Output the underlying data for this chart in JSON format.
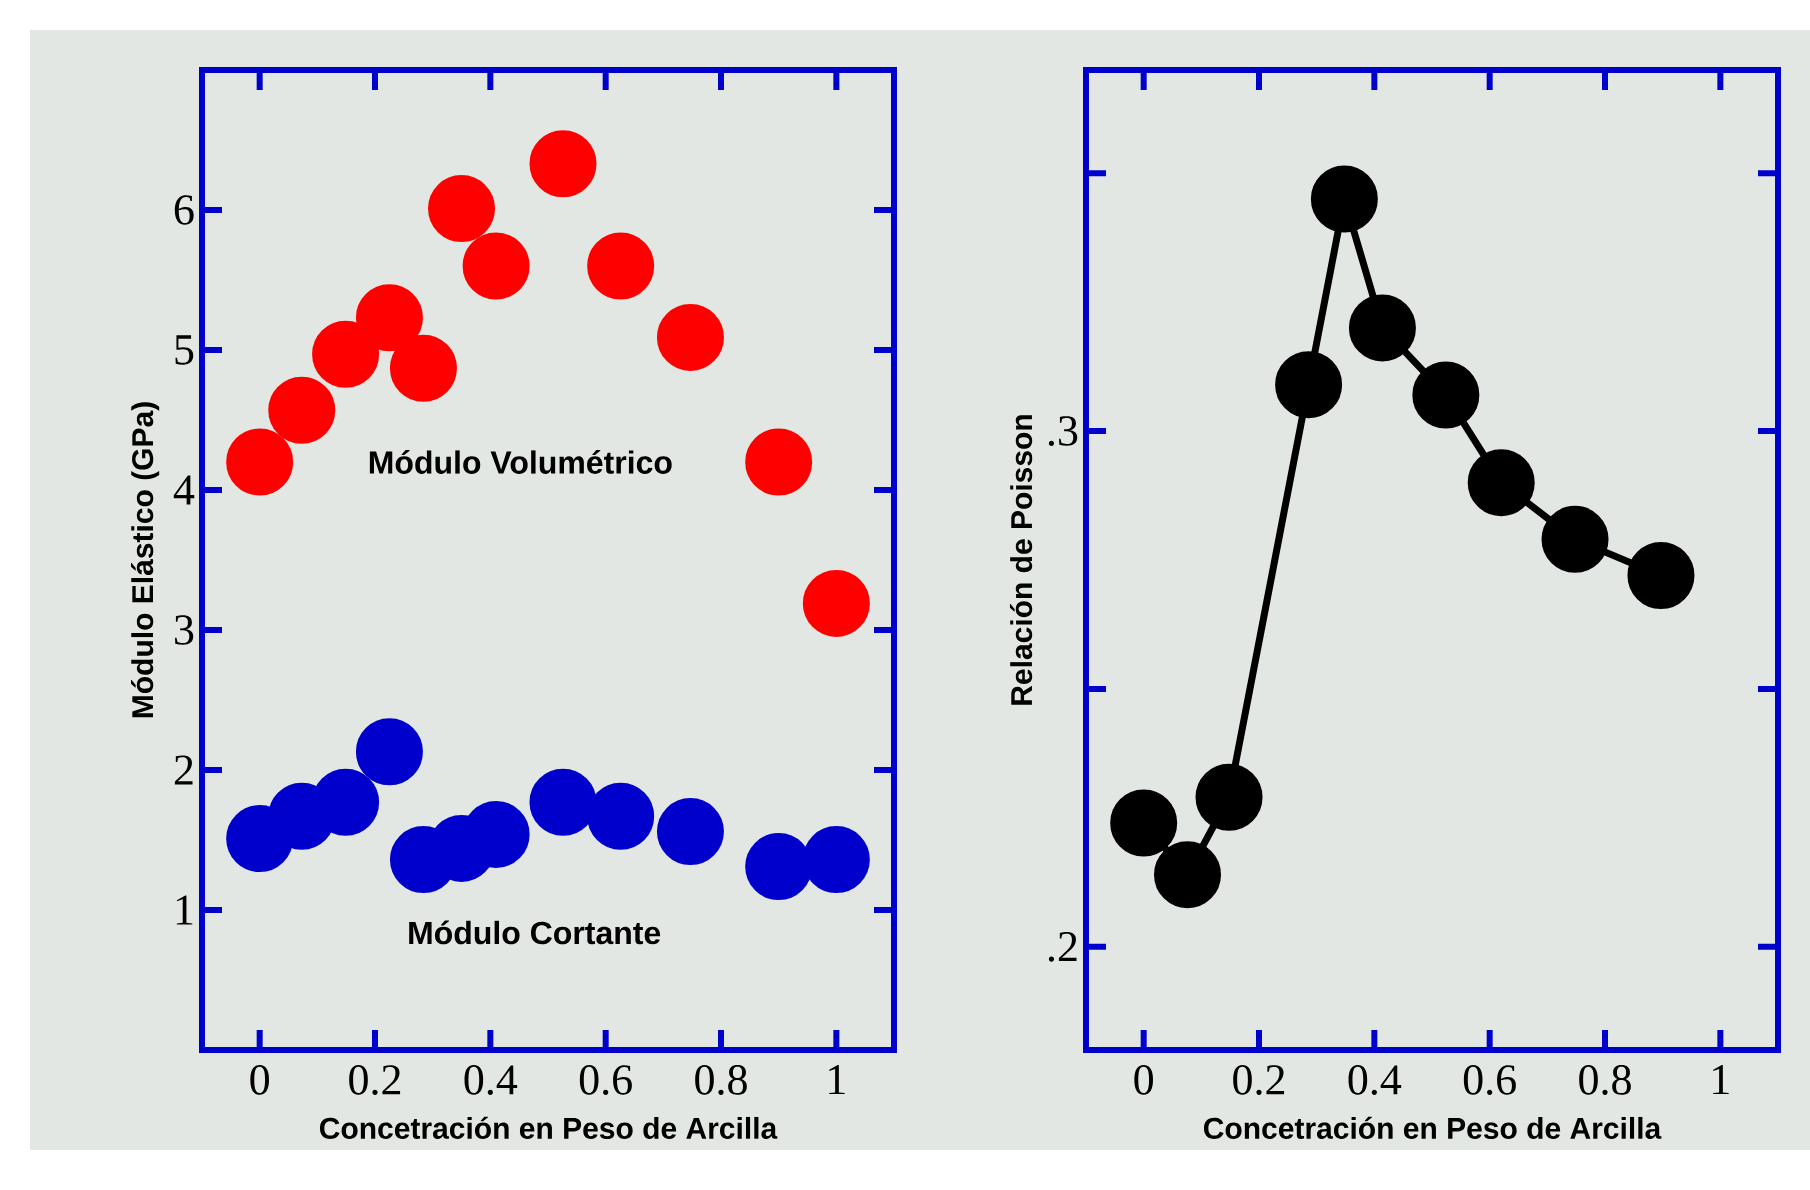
{
  "chart_data": [
    {
      "type": "scatter",
      "xlabel": "Concetración en Peso de Arcilla",
      "ylabel": "Módulo Elástico (GPa)",
      "xlim": [
        -0.1,
        1.1
      ],
      "ylim": [
        0,
        7
      ],
      "xticks": [
        0,
        0.2,
        0.4,
        0.6,
        0.8,
        1
      ],
      "yticks": [
        1,
        2,
        3,
        4,
        5,
        6
      ],
      "marker": "circle",
      "x": [
        0,
        0.073,
        0.149,
        0.225,
        0.284,
        0.35,
        0.41,
        0.526,
        0.626,
        0.747,
        0.9,
        1
      ],
      "series": [
        {
          "color": "#ff0000",
          "values": [
            4.2,
            4.57,
            4.97,
            5.23,
            4.87,
            6.01,
            5.6,
            6.33,
            5.6,
            5.09,
            4.2,
            3.19
          ]
        },
        {
          "color": "#0000cc",
          "values": [
            1.51,
            1.67,
            1.77,
            2.13,
            1.36,
            1.44,
            1.54,
            1.77,
            1.67,
            1.56,
            1.31,
            1.36
          ]
        }
      ],
      "annotations": [
        "Módulo Volumétrico",
        "Módulo Cortante"
      ]
    },
    {
      "type": "line",
      "xlabel": "Concetración en Peso de Arcilla",
      "ylabel": "Relación de Poisson",
      "xlim": [
        -0.1,
        1.1
      ],
      "ylim": [
        0.18,
        0.37
      ],
      "xticks": [
        0,
        0.2,
        0.4,
        0.6,
        0.8,
        1
      ],
      "yticks": [
        {
          "value": 0.2,
          "label": ".2"
        },
        {
          "value": 0.25,
          "label": null
        },
        {
          "value": 0.3,
          "label": ".3"
        },
        {
          "value": 0.35,
          "label": null
        }
      ],
      "marker": "circle",
      "line_style": "solid",
      "x": [
        0,
        0.076,
        0.148,
        0.286,
        0.348,
        0.414,
        0.524,
        0.62,
        0.748,
        0.897
      ],
      "series": [
        {
          "color": "#000000",
          "values": [
            0.224,
            0.214,
            0.229,
            0.309,
            0.345,
            0.32,
            0.307,
            0.29,
            0.279,
            0.272
          ]
        }
      ]
    }
  ]
}
